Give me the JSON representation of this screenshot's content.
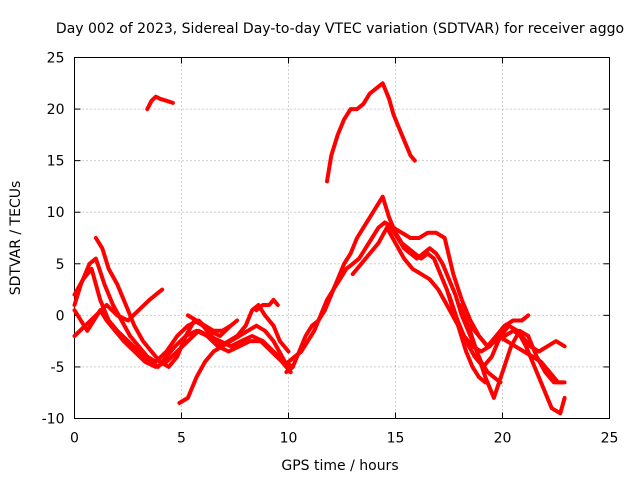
{
  "chart_data": {
    "type": "scatter",
    "title": "Day 002 of 2023, Sidereal Day-to-day VTEC variation (SDTVAR) for receiver aggo",
    "xlabel": "GPS time / hours",
    "ylabel": "SDTVAR / TECUs",
    "xlim": [
      0,
      25
    ],
    "ylim": [
      -10,
      25
    ],
    "xticks": [
      "0",
      "5",
      "10",
      "15",
      "20",
      "25"
    ],
    "yticks": [
      "25",
      "20",
      "15",
      "10",
      "5",
      "0",
      "-5",
      "-10"
    ],
    "grid": true,
    "color": "#ff0000",
    "series": [
      {
        "name": "s1",
        "x": [
          0.0,
          0.4,
          0.8,
          1.2,
          1.6,
          2.0,
          2.5,
          3.0,
          3.5,
          3.9,
          4.3,
          4.7,
          5.2,
          5.7,
          6.2,
          6.7,
          7.2,
          7.7,
          8.2,
          8.7,
          9.2,
          9.7,
          10.1
        ],
        "y": [
          2.0,
          3.5,
          4.5,
          1.5,
          -0.5,
          -1.5,
          -2.5,
          -3.5,
          -4.5,
          -5.0,
          -4.0,
          -3.0,
          -2.0,
          -1.5,
          -2.0,
          -3.0,
          -3.5,
          -3.0,
          -2.5,
          -2.5,
          -3.5,
          -4.5,
          -5.5
        ]
      },
      {
        "name": "s2",
        "x": [
          0.0,
          0.5,
          1.0,
          1.5,
          2.0,
          2.5,
          3.0,
          3.5,
          3.8,
          4.1
        ],
        "y": [
          -2.0,
          -1.0,
          0.0,
          1.0,
          0.0,
          -0.5,
          0.5,
          1.5,
          2.0,
          2.5
        ]
      },
      {
        "name": "s3",
        "x": [
          0.0,
          0.3,
          0.7,
          1.0,
          1.4,
          1.8,
          2.2,
          2.6,
          3.0,
          3.4,
          3.8,
          4.3,
          4.8,
          5.3,
          5.8,
          6.3,
          6.8,
          7.3,
          7.6
        ],
        "y": [
          1.0,
          3.0,
          5.0,
          5.5,
          3.0,
          1.0,
          -0.5,
          -2.0,
          -3.0,
          -4.0,
          -4.5,
          -3.5,
          -2.0,
          -1.0,
          -0.5,
          -1.5,
          -2.0,
          -1.0,
          -0.5
        ]
      },
      {
        "name": "s4",
        "x": [
          0.0,
          0.3,
          0.6,
          0.9,
          1.2,
          1.5,
          1.9,
          2.3,
          2.8,
          3.3,
          3.8,
          4.3,
          4.8,
          5.3,
          5.8,
          6.3,
          6.8,
          7.3,
          7.8,
          8.3,
          8.8,
          9.3,
          9.8,
          10.2
        ],
        "y": [
          0.5,
          -0.5,
          -1.5,
          -0.5,
          0.5,
          -0.5,
          -1.5,
          -2.5,
          -3.5,
          -4.5,
          -5.0,
          -4.5,
          -3.5,
          -2.5,
          -1.5,
          -2.0,
          -2.5,
          -3.0,
          -2.5,
          -2.0,
          -2.5,
          -3.5,
          -4.5,
          -5.0
        ]
      },
      {
        "name": "s5",
        "x": [
          1.0,
          1.3,
          1.6,
          2.0,
          2.4,
          2.8,
          3.2,
          3.6,
          4.0,
          4.4,
          4.8,
          5.2,
          5.6,
          6.0,
          6.4,
          6.8,
          7.2,
          7.6,
          8.0,
          8.3,
          8.6,
          8.9,
          9.3,
          9.6,
          10.0
        ],
        "y": [
          7.5,
          6.5,
          4.5,
          3.0,
          1.0,
          -1.0,
          -2.5,
          -3.5,
          -4.5,
          -5.0,
          -4.0,
          -2.0,
          -0.5,
          -1.0,
          -2.0,
          -3.0,
          -2.5,
          -2.0,
          -1.0,
          0.5,
          1.0,
          0.0,
          -1.0,
          -2.5,
          -3.5
        ]
      },
      {
        "name": "s6",
        "x": [
          4.9,
          5.3,
          5.7,
          6.1,
          6.5,
          6.9,
          7.3,
          7.7,
          8.1,
          8.5,
          8.9,
          9.3,
          9.7,
          10.1
        ],
        "y": [
          -8.5,
          -8.0,
          -6.0,
          -4.5,
          -3.5,
          -3.0,
          -2.5,
          -2.0,
          -1.5,
          -1.0,
          -1.5,
          -2.5,
          -4.0,
          -5.5
        ]
      },
      {
        "name": "s7",
        "x": [
          5.3,
          5.7,
          6.1,
          6.5,
          6.9,
          7.3
        ],
        "y": [
          0.0,
          -0.5,
          -1.0,
          -1.5,
          -1.5,
          -1.0
        ]
      },
      {
        "name": "s8",
        "x": [
          8.5,
          8.8,
          9.1,
          9.3,
          9.5
        ],
        "y": [
          0.5,
          1.0,
          1.0,
          1.5,
          1.0
        ]
      },
      {
        "name": "s9",
        "x": [
          3.4,
          3.6,
          3.8,
          4.0,
          4.3,
          4.6
        ],
        "y": [
          20.0,
          20.8,
          21.2,
          21.0,
          20.8,
          20.6
        ]
      },
      {
        "name": "s10",
        "x": [
          11.8,
          12.0,
          12.3,
          12.6,
          12.9,
          13.2,
          13.5,
          13.8,
          14.1,
          14.4,
          14.7,
          14.9,
          15.1,
          15.3,
          15.5,
          15.7,
          15.9
        ],
        "y": [
          13.0,
          15.5,
          17.5,
          19.0,
          20.0,
          20.0,
          20.5,
          21.5,
          22.0,
          22.5,
          21.0,
          19.5,
          18.5,
          17.5,
          16.5,
          15.5,
          15.0
        ]
      },
      {
        "name": "s11",
        "x": [
          9.9,
          10.2,
          10.5,
          10.8,
          11.1,
          11.4,
          11.7,
          12.0,
          12.3,
          12.6,
          12.9,
          13.2,
          13.5,
          13.8,
          14.1,
          14.4,
          14.7,
          15.0,
          15.3,
          15.6,
          15.9,
          16.2,
          16.5,
          16.8,
          17.1,
          17.4,
          17.7,
          18.0,
          18.3,
          18.6,
          18.9,
          19.2
        ],
        "y": [
          -5.5,
          -5.0,
          -3.5,
          -2.0,
          -1.0,
          -0.5,
          0.5,
          2.0,
          3.5,
          5.0,
          6.0,
          7.5,
          8.5,
          9.5,
          10.5,
          11.5,
          9.5,
          8.0,
          7.0,
          6.5,
          6.0,
          5.5,
          6.0,
          5.5,
          4.0,
          2.5,
          0.5,
          -1.5,
          -3.5,
          -5.0,
          -6.0,
          -6.5
        ]
      },
      {
        "name": "s12",
        "x": [
          10.0,
          10.3,
          10.6,
          10.9,
          11.2,
          11.5,
          11.8,
          12.1,
          12.4,
          12.7,
          13.0,
          13.3,
          13.6,
          13.9,
          14.2,
          14.5,
          14.8,
          15.1,
          15.4,
          15.7,
          16.0,
          16.3,
          16.6,
          16.9,
          17.2,
          17.5,
          17.8,
          18.1,
          18.4,
          18.7,
          19.0,
          19.3,
          19.6,
          19.9
        ],
        "y": [
          -4.5,
          -4.0,
          -3.5,
          -2.5,
          -1.5,
          0.0,
          1.5,
          2.5,
          3.5,
          4.5,
          5.0,
          5.5,
          6.5,
          7.5,
          8.5,
          9.0,
          8.5,
          7.5,
          6.5,
          6.0,
          5.5,
          6.0,
          6.5,
          6.0,
          5.0,
          3.5,
          2.0,
          0.0,
          -1.5,
          -3.0,
          -4.5,
          -5.5,
          -6.0,
          -6.5
        ]
      },
      {
        "name": "s13",
        "x": [
          13.0,
          13.4,
          13.8,
          14.2,
          14.6,
          15.0,
          15.4,
          15.8,
          16.2,
          16.6,
          17.0,
          17.4,
          17.8,
          18.2,
          18.6,
          19.0,
          19.4,
          19.8,
          20.2,
          20.6,
          21.0,
          21.4,
          21.8,
          22.2,
          22.6,
          22.9
        ],
        "y": [
          4.0,
          5.0,
          6.0,
          7.0,
          8.5,
          7.0,
          5.5,
          4.5,
          4.0,
          3.5,
          2.5,
          1.0,
          -0.5,
          -2.0,
          -3.0,
          -3.5,
          -3.0,
          -2.0,
          -2.5,
          -3.0,
          -3.5,
          -4.0,
          -4.5,
          -5.5,
          -6.5,
          -6.5
        ]
      },
      {
        "name": "s14",
        "x": [
          14.5,
          14.9,
          15.3,
          15.7,
          16.1,
          16.5,
          16.9,
          17.3,
          17.7,
          18.1,
          18.5,
          18.9,
          19.3,
          19.7,
          20.1,
          20.5,
          20.9,
          21.3,
          21.7,
          22.1,
          22.5,
          22.9
        ],
        "y": [
          9.0,
          8.5,
          8.0,
          7.5,
          7.5,
          8.0,
          8.0,
          7.5,
          4.0,
          1.5,
          -0.5,
          -2.0,
          -3.0,
          -2.5,
          -2.0,
          -1.5,
          -2.0,
          -3.0,
          -3.5,
          -3.0,
          -2.5,
          -3.0
        ]
      },
      {
        "name": "s15",
        "x": [
          17.5,
          17.9,
          18.3,
          18.7,
          19.1,
          19.5,
          19.9,
          20.3,
          20.7,
          21.1,
          21.5,
          21.9,
          22.3,
          22.7,
          22.9
        ],
        "y": [
          2.0,
          -0.5,
          -2.5,
          -4.0,
          -5.0,
          -4.0,
          -2.0,
          -1.0,
          -1.5,
          -3.0,
          -5.0,
          -7.0,
          -9.0,
          -9.5,
          -8.0
        ]
      },
      {
        "name": "s16",
        "x": [
          18.0,
          18.4,
          18.8,
          19.2,
          19.6,
          20.0,
          20.4,
          20.8,
          21.2,
          21.6,
          22.0,
          22.4,
          22.8
        ],
        "y": [
          1.0,
          -1.0,
          -3.5,
          -6.0,
          -8.0,
          -5.5,
          -3.0,
          -1.5,
          -2.0,
          -4.0,
          -5.5,
          -6.5,
          -6.5
        ]
      },
      {
        "name": "s17",
        "x": [
          18.5,
          18.9,
          19.3,
          19.7,
          20.1,
          20.5,
          20.9,
          21.2
        ],
        "y": [
          -1.0,
          -2.0,
          -3.0,
          -2.0,
          -1.0,
          -0.5,
          -0.5,
          0.0
        ]
      }
    ]
  }
}
